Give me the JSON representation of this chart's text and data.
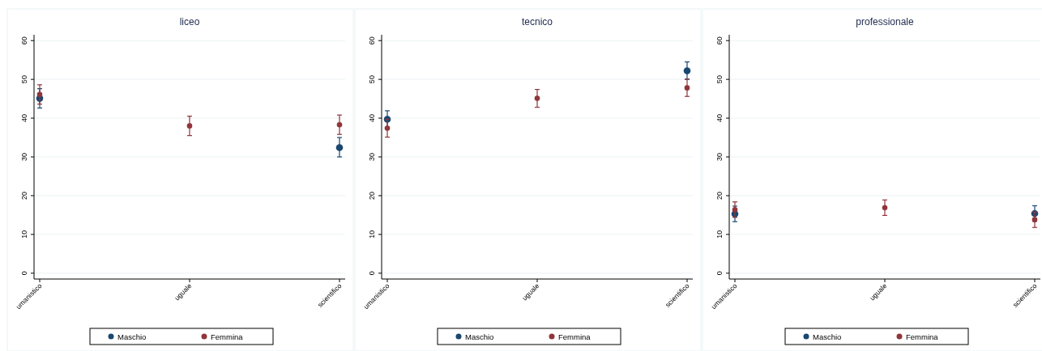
{
  "chart_data": [
    {
      "type": "scatter",
      "title": "liceo",
      "categories": [
        "umanistico",
        "uguale",
        "scientifico"
      ],
      "ylim": [
        -1.5,
        61.5
      ],
      "yticks": [
        0,
        10,
        20,
        30,
        40,
        50,
        60
      ],
      "grid": "y",
      "legend": "bottom",
      "marker": "circle",
      "series": [
        {
          "name": "Maschio",
          "color": "#1a476f",
          "values": [
            45.1,
            null,
            32.4
          ],
          "errors": [
            [
              42.6,
              47.6
            ],
            null,
            [
              30,
              35
            ]
          ]
        },
        {
          "name": "Femmina",
          "color": "#90353b",
          "values": [
            46.1,
            38,
            38.3
          ],
          "errors": [
            [
              43.6,
              48.6
            ],
            [
              35.5,
              40.5
            ],
            [
              35.8,
              40.8
            ]
          ]
        }
      ]
    },
    {
      "type": "scatter",
      "title": "tecnico",
      "categories": [
        "umanistico",
        "uguale",
        "scientifico"
      ],
      "ylim": [
        -1.5,
        61.5
      ],
      "yticks": [
        0,
        10,
        20,
        30,
        40,
        50,
        60
      ],
      "grid": "y",
      "legend": "bottom",
      "marker": "circle",
      "series": [
        {
          "name": "Maschio",
          "color": "#1a476f",
          "values": [
            39.7,
            null,
            52.2
          ],
          "errors": [
            [
              37.4,
              41.9
            ],
            null,
            [
              50,
              54.5
            ]
          ]
        },
        {
          "name": "Femmina",
          "color": "#90353b",
          "values": [
            37.4,
            45.1,
            47.8
          ],
          "errors": [
            [
              35.1,
              39.7
            ],
            [
              42.8,
              47.4
            ],
            [
              45.6,
              50.1
            ]
          ]
        }
      ]
    },
    {
      "type": "scatter",
      "title": "professionale",
      "categories": [
        "umanistico",
        "uguale",
        "scientifico"
      ],
      "ylim": [
        -1.5,
        61.5
      ],
      "yticks": [
        0,
        10,
        20,
        30,
        40,
        50,
        60
      ],
      "grid": "y",
      "legend": "bottom",
      "marker": "circle",
      "series": [
        {
          "name": "Maschio",
          "color": "#1a476f",
          "values": [
            15.3,
            null,
            15.4
          ],
          "errors": [
            [
              13.3,
              17.3
            ],
            null,
            [
              13.4,
              17.4
            ]
          ]
        },
        {
          "name": "Femmina",
          "color": "#90353b",
          "values": [
            16.4,
            16.9,
            13.8
          ],
          "errors": [
            [
              14.4,
              18.4
            ],
            [
              14.9,
              18.9
            ],
            [
              11.8,
              15.8
            ]
          ]
        }
      ]
    }
  ]
}
